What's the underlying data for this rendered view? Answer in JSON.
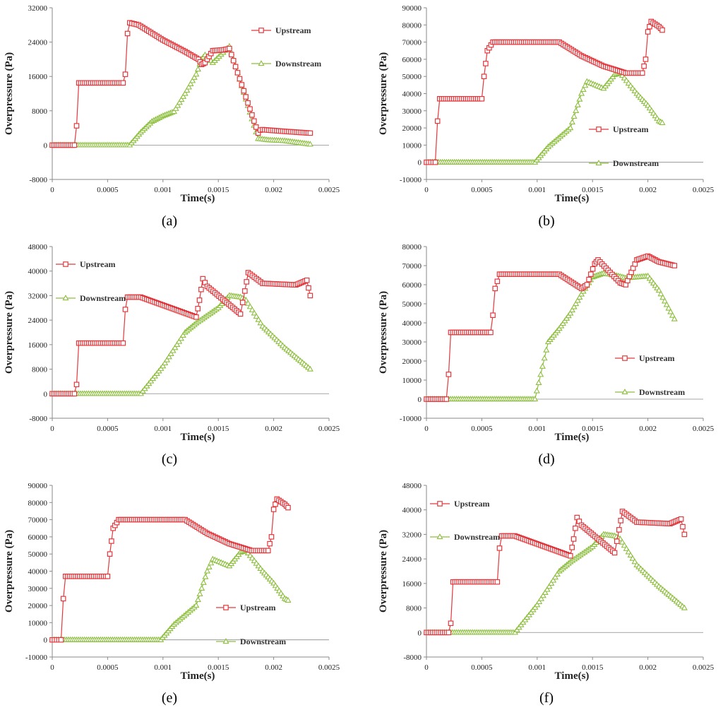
{
  "colors": {
    "upstream": "#E0393E",
    "downstream": "#8DBF3F",
    "axis": "#8a8a8a"
  },
  "chart_data": [
    {
      "panel_label": "(a)",
      "type": "line",
      "xlabel": "Time(s)",
      "ylabel": "Overpressure (Pa)",
      "xlim": [
        0,
        0.0025
      ],
      "ylim": [
        -8000,
        32000
      ],
      "xticks": [
        "0",
        "0.0005",
        "0.001",
        "0.0015",
        "0.002",
        "0.0025"
      ],
      "yticks": [
        "-8000",
        "0",
        "8000",
        "16000",
        "24000",
        "32000"
      ],
      "legend_labels": {
        "upstream": "Upstream",
        "downstream": "Downstream"
      },
      "series": [
        {
          "name": "Upstream",
          "marker": "square",
          "x": [
            0,
            0.0002,
            0.00022,
            0.00024,
            0.00064,
            0.00066,
            0.00068,
            0.0007,
            0.00078,
            0.001,
            0.0012,
            0.00132,
            0.00135,
            0.00138,
            0.0014,
            0.00145,
            0.00155,
            0.0016,
            0.00186,
            0.00188,
            0.0019,
            0.0021,
            0.00233
          ],
          "y": [
            0,
            0,
            4500,
            14500,
            14500,
            16500,
            26000,
            28500,
            28000,
            24500,
            21800,
            20000,
            18800,
            19200,
            20000,
            22000,
            22200,
            22500,
            2800,
            3500,
            3600,
            3200,
            2800
          ]
        },
        {
          "name": "Downstream",
          "marker": "triangle",
          "x": [
            0,
            0.0007,
            0.0008,
            0.0009,
            0.001,
            0.0011,
            0.0012,
            0.0013,
            0.00135,
            0.00138,
            0.00145,
            0.0016,
            0.00186,
            0.00195,
            0.0021,
            0.00233
          ],
          "y": [
            0,
            0,
            3000,
            5500,
            6800,
            7800,
            12000,
            16500,
            20000,
            21000,
            19200,
            23000,
            1500,
            1200,
            1000,
            200
          ]
        }
      ]
    },
    {
      "panel_label": "(b)",
      "type": "line",
      "xlabel": "Time(s)",
      "ylabel": "Overpressure (Pa)",
      "xlim": [
        0,
        0.0025
      ],
      "ylim": [
        -10000,
        90000
      ],
      "xticks": [
        "0",
        "0.0005",
        "0.001",
        "0.0015",
        "0.002",
        "0.0025"
      ],
      "yticks": [
        "-10000",
        "0",
        "10000",
        "20000",
        "30000",
        "40000",
        "50000",
        "60000",
        "70000",
        "80000",
        "90000"
      ],
      "legend_labels": {
        "upstream": "Upstream",
        "downstream": "Downstream"
      },
      "series": [
        {
          "name": "Upstream",
          "marker": "square",
          "x": [
            0,
            8e-05,
            0.0001,
            0.00012,
            0.0005,
            0.00052,
            0.00055,
            0.0006,
            0.0007,
            0.0012,
            0.0014,
            0.0016,
            0.0018,
            0.00195,
            0.00198,
            0.002,
            0.00203,
            0.0021,
            0.00213
          ],
          "y": [
            0,
            0,
            24000,
            37000,
            37000,
            50000,
            65000,
            70000,
            70000,
            70000,
            62000,
            56000,
            52000,
            52000,
            60000,
            76000,
            82000,
            79000,
            77000
          ]
        },
        {
          "name": "Downstream",
          "marker": "triangle",
          "x": [
            0,
            0.00098,
            0.0011,
            0.0013,
            0.0014,
            0.00145,
            0.0016,
            0.0017,
            0.00175,
            0.0019,
            0.002,
            0.0021,
            0.00213
          ],
          "y": [
            0,
            0,
            9000,
            20000,
            40000,
            47000,
            43000,
            51000,
            52000,
            40000,
            33000,
            24000,
            23000
          ]
        }
      ]
    },
    {
      "panel_label": "(c)",
      "type": "line",
      "xlabel": "Time(s)",
      "ylabel": "Overpressure (Pa)",
      "xlim": [
        0,
        0.0025
      ],
      "ylim": [
        -8000,
        48000
      ],
      "xticks": [
        "0",
        "0.0005",
        "0.001",
        "0.0015",
        "0.002",
        "0.0025"
      ],
      "yticks": [
        "-8000",
        "0",
        "8000",
        "16000",
        "24000",
        "32000",
        "40000",
        "48000"
      ],
      "legend_labels": {
        "upstream": "Upstream",
        "downstream": "Downstream"
      },
      "series": [
        {
          "name": "Upstream",
          "marker": "square",
          "x": [
            0,
            0.0002,
            0.00022,
            0.00024,
            0.00064,
            0.00066,
            0.00068,
            0.0008,
            0.0013,
            0.00133,
            0.00136,
            0.0014,
            0.0017,
            0.00174,
            0.00177,
            0.0019,
            0.0022,
            0.0023,
            0.00233
          ],
          "y": [
            0,
            0,
            3000,
            16500,
            16500,
            27500,
            31500,
            31500,
            25000,
            30500,
            37500,
            35000,
            26000,
            33500,
            39500,
            36000,
            35500,
            37000,
            32000
          ]
        },
        {
          "name": "Downstream",
          "marker": "triangle",
          "x": [
            0,
            0.0008,
            0.001,
            0.0012,
            0.0013,
            0.0015,
            0.0016,
            0.0017,
            0.00175,
            0.0019,
            0.0021,
            0.00233
          ],
          "y": [
            0,
            0,
            9000,
            20000,
            23000,
            28000,
            32000,
            31500,
            30500,
            22000,
            15000,
            8000
          ]
        }
      ]
    },
    {
      "panel_label": "(d)",
      "type": "line",
      "xlabel": "Time(s)",
      "ylabel": "Overpressure (Pa)",
      "xlim": [
        0,
        0.0025
      ],
      "ylim": [
        -10000,
        80000
      ],
      "xticks": [
        "0",
        "0.0005",
        "0.001",
        "0.0015",
        "0.002",
        "0.0025"
      ],
      "yticks": [
        "-10000",
        "0",
        "10000",
        "20000",
        "30000",
        "40000",
        "50000",
        "60000",
        "70000",
        "80000"
      ],
      "legend_labels": {
        "upstream": "Upstream",
        "downstream": "Downstream"
      },
      "series": [
        {
          "name": "Upstream",
          "marker": "square",
          "x": [
            0,
            0.00018,
            0.0002,
            0.00022,
            0.00058,
            0.0006,
            0.00062,
            0.00066,
            0.0012,
            0.0014,
            0.00145,
            0.00152,
            0.00155,
            0.00175,
            0.0018,
            0.0019,
            0.002,
            0.0021,
            0.00224
          ],
          "y": [
            0,
            0,
            13000,
            35000,
            35000,
            44000,
            58000,
            65500,
            65500,
            58000,
            60000,
            71000,
            73000,
            61000,
            60000,
            73000,
            75000,
            72000,
            70000
          ]
        },
        {
          "name": "Downstream",
          "marker": "triangle",
          "x": [
            0,
            0.00098,
            0.0011,
            0.0012,
            0.0013,
            0.0014,
            0.0015,
            0.0016,
            0.0017,
            0.0018,
            0.002,
            0.0021,
            0.00224
          ],
          "y": [
            0,
            0,
            30000,
            37000,
            45000,
            55000,
            64000,
            66000,
            65000,
            63500,
            64500,
            57000,
            42000
          ]
        }
      ]
    },
    {
      "panel_label": "(e)",
      "type": "line",
      "xlabel": "Time(s)",
      "ylabel": "Overpressure (Pa)",
      "xlim": [
        0,
        0.0025
      ],
      "ylim": [
        -10000,
        90000
      ],
      "xticks": [
        "0",
        "0.0005",
        "0.001",
        "0.0015",
        "0.002",
        "0.0025"
      ],
      "yticks": [
        "-10000",
        "0",
        "10000",
        "20000",
        "30000",
        "40000",
        "50000",
        "60000",
        "70000",
        "80000",
        "90000"
      ],
      "legend_labels": {
        "upstream": "Upstream",
        "downstream": "Downstream"
      },
      "series": [
        {
          "name": "Upstream",
          "marker": "square",
          "x": [
            0,
            8e-05,
            0.0001,
            0.00012,
            0.0005,
            0.00052,
            0.00055,
            0.0006,
            0.0007,
            0.0012,
            0.0014,
            0.0016,
            0.0018,
            0.00195,
            0.00198,
            0.002,
            0.00203,
            0.0021,
            0.00213
          ],
          "y": [
            0,
            0,
            24000,
            37000,
            37000,
            50000,
            65000,
            70000,
            70000,
            70000,
            62000,
            56000,
            52000,
            52000,
            60000,
            76000,
            82000,
            79000,
            77000
          ]
        },
        {
          "name": "Downstream",
          "marker": "triangle",
          "x": [
            0,
            0.00098,
            0.0011,
            0.0013,
            0.0014,
            0.00145,
            0.0016,
            0.0017,
            0.00175,
            0.0019,
            0.002,
            0.0021,
            0.00213
          ],
          "y": [
            0,
            0,
            9000,
            20000,
            40000,
            47000,
            43000,
            51000,
            52000,
            40000,
            33000,
            24000,
            23000
          ]
        }
      ]
    },
    {
      "panel_label": "(f)",
      "type": "line",
      "xlabel": "Time(s)",
      "ylabel": "Overpressure (Pa)",
      "xlim": [
        0,
        0.0025
      ],
      "ylim": [
        -8000,
        48000
      ],
      "xticks": [
        "0",
        "0.0005",
        "0.001",
        "0.0015",
        "0.002",
        "0.0025"
      ],
      "yticks": [
        "-8000",
        "0",
        "8000",
        "16000",
        "24000",
        "32000",
        "40000",
        "48000"
      ],
      "legend_labels": {
        "upstream": "Upstream",
        "downstream": "Downstream"
      },
      "series": [
        {
          "name": "Upstream",
          "marker": "square",
          "x": [
            0,
            0.0002,
            0.00022,
            0.00024,
            0.00064,
            0.00066,
            0.00068,
            0.0008,
            0.0013,
            0.00133,
            0.00136,
            0.0014,
            0.0017,
            0.00174,
            0.00177,
            0.0019,
            0.0022,
            0.0023,
            0.00233
          ],
          "y": [
            0,
            0,
            3000,
            16500,
            16500,
            27500,
            31500,
            31500,
            25000,
            30500,
            37500,
            35000,
            26000,
            33500,
            39500,
            36000,
            35500,
            37000,
            32000
          ]
        },
        {
          "name": "Downstream",
          "marker": "triangle",
          "x": [
            0,
            0.0008,
            0.001,
            0.0012,
            0.0013,
            0.0015,
            0.0016,
            0.0017,
            0.00175,
            0.0019,
            0.0021,
            0.00233
          ],
          "y": [
            0,
            0,
            9000,
            20000,
            23000,
            28000,
            32000,
            31500,
            30500,
            22000,
            15000,
            8000
          ]
        }
      ]
    }
  ]
}
